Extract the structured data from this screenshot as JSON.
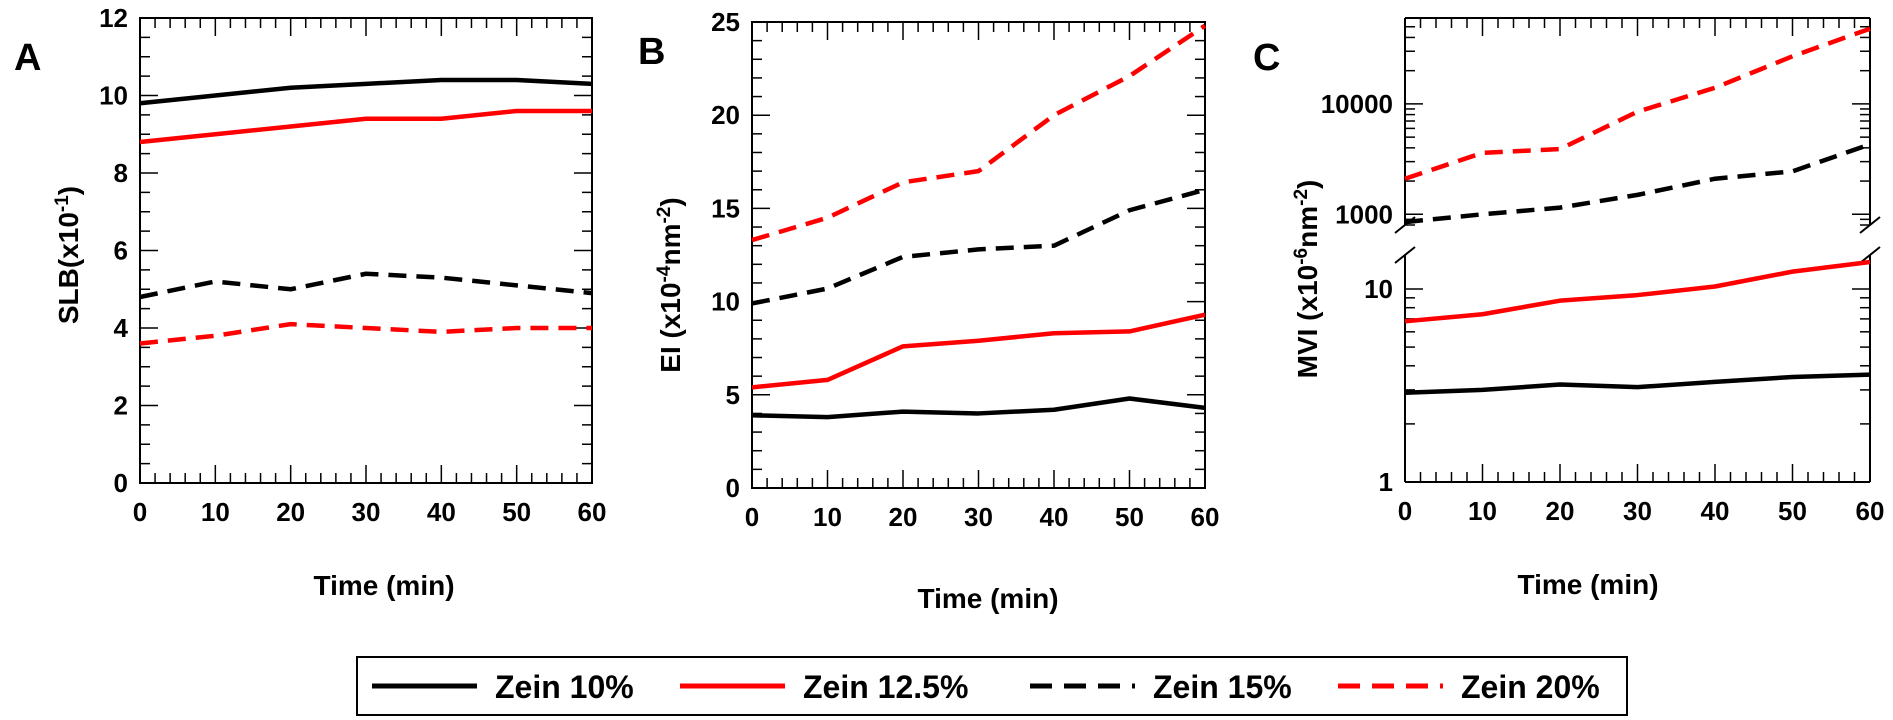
{
  "series_styles": [
    {
      "name": "Zein 10%",
      "color": "#000000",
      "dash": "solid"
    },
    {
      "name": "Zein 12.5%",
      "color": "#ff0000",
      "dash": "solid"
    },
    {
      "name": "Zein 15%",
      "color": "#000000",
      "dash": "dashed"
    },
    {
      "name": "Zein 20%",
      "color": "#ff0000",
      "dash": "dashed"
    }
  ],
  "chart_data": [
    {
      "type": "line",
      "panel": "A",
      "xlabel": "Time (min)",
      "ylabel": "SLB(x10",
      "ylabel_sup": "-1",
      "ylabel_end": ")",
      "x": [
        0,
        10,
        20,
        30,
        40,
        50,
        60
      ],
      "xlim": [
        0,
        60
      ],
      "ylim": [
        0,
        12
      ],
      "yscale": "linear",
      "yticks": [
        0,
        2,
        4,
        6,
        8,
        10,
        12
      ],
      "series": [
        {
          "name": "Zein 10%",
          "values": [
            9.8,
            10.0,
            10.2,
            10.3,
            10.4,
            10.4,
            10.3
          ]
        },
        {
          "name": "Zein 12.5%",
          "values": [
            8.8,
            9.0,
            9.2,
            9.4,
            9.4,
            9.6,
            9.6
          ]
        },
        {
          "name": "Zein 15%",
          "values": [
            4.8,
            5.2,
            5.0,
            5.4,
            5.3,
            5.1,
            4.9
          ]
        },
        {
          "name": "Zein 20%",
          "values": [
            3.6,
            3.8,
            4.1,
            4.0,
            3.9,
            4.0,
            4.0
          ]
        }
      ],
      "legend": "bottom",
      "grid": false
    },
    {
      "type": "line",
      "panel": "B",
      "xlabel": "Time (min)",
      "ylabel": "EI (x10",
      "ylabel_sup": "-4",
      "ylabel_mid": "nm",
      "ylabel_sup2": "-2",
      "ylabel_end": ")",
      "x": [
        0,
        10,
        20,
        30,
        40,
        50,
        60
      ],
      "xlim": [
        0,
        60
      ],
      "ylim": [
        0,
        25
      ],
      "yscale": "linear",
      "yticks": [
        0,
        5,
        10,
        15,
        20,
        25
      ],
      "series": [
        {
          "name": "Zein 10%",
          "values": [
            3.9,
            3.8,
            4.1,
            4.0,
            4.2,
            4.8,
            4.3
          ]
        },
        {
          "name": "Zein 12.5%",
          "values": [
            5.4,
            5.8,
            7.6,
            7.9,
            8.3,
            8.4,
            9.3
          ]
        },
        {
          "name": "Zein 15%",
          "values": [
            9.9,
            10.7,
            12.4,
            12.8,
            13.0,
            14.9,
            16.0
          ]
        },
        {
          "name": "Zein 20%",
          "values": [
            13.3,
            14.5,
            16.4,
            17.0,
            20.0,
            22.1,
            24.8
          ]
        }
      ],
      "legend": "bottom",
      "grid": false
    },
    {
      "type": "line",
      "panel": "C",
      "xlabel": "Time (min)",
      "ylabel": "MVI (x10",
      "ylabel_sup": "-6",
      "ylabel_mid": "nm",
      "ylabel_sup2": "-2",
      "ylabel_end": ")",
      "x": [
        0,
        10,
        20,
        30,
        40,
        50,
        60
      ],
      "xlim": [
        0,
        60
      ],
      "yscale": "log",
      "broken_axis": true,
      "lower_range": [
        1,
        15
      ],
      "upper_range": [
        800,
        60000
      ],
      "yticks_lower": [
        "1",
        "10"
      ],
      "yticks_upper": [
        "1000",
        "10000"
      ],
      "series": [
        {
          "name": "Zein 10%",
          "values": [
            2.9,
            3.0,
            3.2,
            3.1,
            3.3,
            3.5,
            3.6
          ]
        },
        {
          "name": "Zein 12.5%",
          "values": [
            6.8,
            7.4,
            8.7,
            9.3,
            10.3,
            12.3,
            13.8
          ]
        },
        {
          "name": "Zein 15%",
          "values": [
            850,
            1000,
            1150,
            1500,
            2100,
            2450,
            4300
          ]
        },
        {
          "name": "Zein 20%",
          "values": [
            2100,
            3600,
            3900,
            8500,
            14000,
            27000,
            48000
          ]
        }
      ],
      "legend": "bottom",
      "grid": false
    }
  ]
}
